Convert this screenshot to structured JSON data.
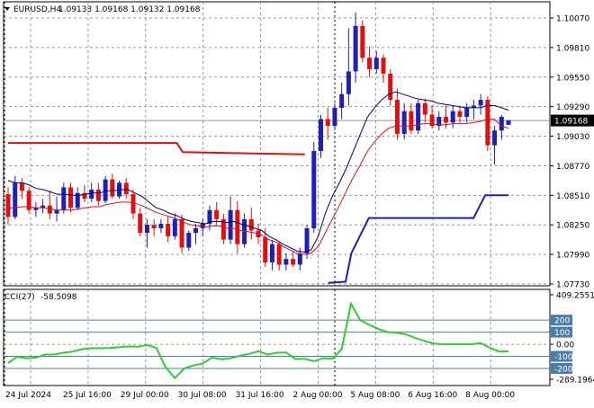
{
  "header": {
    "symbol_text": "EURUSD,H4",
    "ohlc_text": "1.09133 1.09168 1.09132 1.09168"
  },
  "cci_header": {
    "label_text": "CCI(27)",
    "value_text": "-58.5098"
  },
  "colors": {
    "background": "#ffffff",
    "grid": "#9a9a9a",
    "bull_candle": "#1f1fb4",
    "bear_candle": "#e01010",
    "ma_fast": "#000080",
    "ma_slow": "#e01010",
    "upper_line": "#e01010",
    "lower_line": "#1f1fb4",
    "cci_line": "#32cd32",
    "level_badge": "#4a7ea8",
    "price_badge": "#000000"
  },
  "chart_data": [
    {
      "type": "candlestick",
      "title": "EURUSD,H4",
      "y_ticks": [
        "1.10070",
        "1.09810",
        "1.09550",
        "1.09290",
        "1.09030",
        "1.08770",
        "1.08510",
        "1.08250",
        "1.07990",
        "1.07730"
      ],
      "ylim": [
        1.0773,
        1.1007
      ],
      "current_price": "1.09168",
      "x_ticks": [
        "24 Jul 2024",
        "25 Jul 16:00",
        "29 Jul 00:00",
        "30 Jul 08:00",
        "31 Jul 16:00",
        "2 Aug 00:00",
        "5 Aug 08:00",
        "6 Aug 16:00",
        "8 Aug 00:00"
      ],
      "grid": true,
      "candles": [
        [
          1.0852,
          1.0858,
          1.0825,
          1.0832
        ],
        [
          1.0832,
          1.0868,
          1.083,
          1.0862
        ],
        [
          1.0862,
          1.0866,
          1.0848,
          1.0855
        ],
        [
          1.0855,
          1.0858,
          1.0835,
          1.0838
        ],
        [
          1.0838,
          1.0845,
          1.0832,
          1.084
        ],
        [
          1.084,
          1.0848,
          1.0835,
          1.0842
        ],
        [
          1.0842,
          1.0855,
          1.083,
          1.0835
        ],
        [
          1.0835,
          1.085,
          1.0828,
          1.0838
        ],
        [
          1.0838,
          1.0862,
          1.0835,
          1.0858
        ],
        [
          1.0858,
          1.0862,
          1.0836,
          1.084
        ],
        [
          1.084,
          1.0858,
          1.0838,
          1.0853
        ],
        [
          1.0853,
          1.086,
          1.0845,
          1.0848
        ],
        [
          1.0848,
          1.0862,
          1.0845,
          1.0856
        ],
        [
          1.0856,
          1.0862,
          1.0842,
          1.0846
        ],
        [
          1.0846,
          1.0868,
          1.0844,
          1.0865
        ],
        [
          1.0865,
          1.087,
          1.0848,
          1.085
        ],
        [
          1.085,
          1.0864,
          1.0848,
          1.0862
        ],
        [
          1.0862,
          1.0866,
          1.0848,
          1.0852
        ],
        [
          1.0852,
          1.0856,
          1.083,
          1.0835
        ],
        [
          1.0835,
          1.084,
          1.0815,
          1.0818
        ],
        [
          1.0818,
          1.083,
          1.0805,
          1.0825
        ],
        [
          1.0825,
          1.083,
          1.0815,
          1.0822
        ],
        [
          1.0822,
          1.083,
          1.0818,
          1.0826
        ],
        [
          1.0826,
          1.0832,
          1.081,
          1.0815
        ],
        [
          1.0815,
          1.0835,
          1.0812,
          1.083
        ],
        [
          1.083,
          1.0834,
          1.08,
          1.0805
        ],
        [
          1.0805,
          1.082,
          1.0802,
          1.0818
        ],
        [
          1.0818,
          1.0826,
          1.0808,
          1.0822
        ],
        [
          1.0822,
          1.083,
          1.0815,
          1.0826
        ],
        [
          1.0826,
          1.0842,
          1.082,
          1.0838
        ],
        [
          1.0838,
          1.0845,
          1.0825,
          1.083
        ],
        [
          1.083,
          1.0835,
          1.0808,
          1.0812
        ],
        [
          1.0812,
          1.085,
          1.0808,
          1.0838
        ],
        [
          1.0838,
          1.0846,
          1.08,
          1.0808
        ],
        [
          1.0808,
          1.0835,
          1.0805,
          1.083
        ],
        [
          1.083,
          1.084,
          1.0812,
          1.082
        ],
        [
          1.082,
          1.0826,
          1.0808,
          1.0814
        ],
        [
          1.0814,
          1.0822,
          1.0788,
          1.0792
        ],
        [
          1.0792,
          1.0812,
          1.0785,
          1.0808
        ],
        [
          1.0808,
          1.081,
          1.0785,
          1.079
        ],
        [
          1.079,
          1.08,
          1.0785,
          1.0795
        ],
        [
          1.0795,
          1.0802,
          1.0788,
          1.079
        ],
        [
          1.079,
          1.0805,
          1.0785,
          1.08
        ],
        [
          1.08,
          1.0825,
          1.0795,
          1.0822
        ],
        [
          1.0822,
          1.0898,
          1.0818,
          1.089
        ],
        [
          1.089,
          1.0922,
          1.0884,
          1.0918
        ],
        [
          1.0918,
          1.0928,
          1.09,
          1.0912
        ],
        [
          1.0912,
          1.0932,
          1.0908,
          1.0928
        ],
        [
          1.0928,
          1.095,
          1.0918,
          1.094
        ],
        [
          1.094,
          1.0998,
          1.093,
          1.096
        ],
        [
          1.096,
          1.1012,
          1.095,
          1.1
        ],
        [
          1.1,
          1.1005,
          1.0968,
          1.0972
        ],
        [
          1.0972,
          1.0982,
          1.0955,
          1.0962
        ],
        [
          1.0962,
          1.0978,
          1.0958,
          1.0972
        ],
        [
          1.0972,
          1.0975,
          1.095,
          1.0958
        ],
        [
          1.0958,
          1.0962,
          1.093,
          1.0935
        ],
        [
          1.0935,
          1.0945,
          1.09,
          1.0905
        ],
        [
          1.0905,
          1.0932,
          1.09,
          1.0925
        ],
        [
          1.0925,
          1.0932,
          1.0905,
          1.0908
        ],
        [
          1.0908,
          1.0935,
          1.0905,
          1.0932
        ],
        [
          1.0932,
          1.0936,
          1.0915,
          1.0922
        ],
        [
          1.0922,
          1.093,
          1.091,
          1.0912
        ],
        [
          1.0912,
          1.0925,
          1.0908,
          1.092
        ],
        [
          1.092,
          1.093,
          1.091,
          1.0915
        ],
        [
          1.0915,
          1.093,
          1.091,
          1.0925
        ],
        [
          1.0925,
          1.093,
          1.0915,
          1.092
        ],
        [
          1.092,
          1.0932,
          1.0915,
          1.0928
        ],
        [
          1.0928,
          1.0935,
          1.0918,
          1.093
        ],
        [
          1.093,
          1.094,
          1.0922,
          1.0935
        ],
        [
          1.0935,
          1.0938,
          1.089,
          1.0895
        ],
        [
          1.0895,
          1.0912,
          1.0878,
          1.0908
        ],
        [
          1.0908,
          1.0922,
          1.09,
          1.092
        ],
        [
          1.0913,
          1.0917,
          1.0913,
          1.0917
        ]
      ],
      "series": [
        {
          "values": [
            1.0864,
            1.0862,
            1.0862,
            1.086,
            1.0857,
            1.0856,
            1.0854,
            1.0852,
            1.0852,
            1.0851,
            1.0851,
            1.0852,
            1.0853,
            1.0853,
            1.0855,
            1.0855,
            1.0856,
            1.0856,
            1.0853,
            1.085,
            1.0845,
            1.084,
            1.0838,
            1.0835,
            1.0833,
            1.083,
            1.0828,
            1.0827,
            1.0826,
            1.0828,
            1.0828,
            1.0827,
            1.0828,
            1.0826,
            1.0824,
            1.0822,
            1.082,
            1.0815,
            1.0812,
            1.0808,
            1.0805,
            1.0802,
            1.0801,
            1.0803,
            1.0815,
            1.0835,
            1.085,
            1.0862,
            1.0875,
            1.089,
            1.0905,
            1.092,
            1.0928,
            1.0935,
            1.094,
            1.0942,
            1.094,
            1.0938,
            1.0936,
            1.0935,
            1.0934,
            1.0932,
            1.0931,
            1.093,
            1.0929,
            1.0928,
            1.0928,
            1.0928,
            1.093,
            1.093,
            1.0928,
            1.0926
          ]
        },
        {
          "values": [
            1.084,
            1.084,
            1.0841,
            1.0841,
            1.084,
            1.084,
            1.0839,
            1.0838,
            1.0838,
            1.0838,
            1.0839,
            1.084,
            1.0841,
            1.0841,
            1.0843,
            1.0844,
            1.0845,
            1.0845,
            1.0844,
            1.0842,
            1.0839,
            1.0836,
            1.0834,
            1.0832,
            1.083,
            1.0827,
            1.0825,
            1.0824,
            1.0823,
            1.0824,
            1.0824,
            1.0822,
            1.0822,
            1.082,
            1.0819,
            1.0818,
            1.0816,
            1.0812,
            1.081,
            1.0806,
            1.0803,
            1.08,
            1.0799,
            1.08,
            1.0806,
            1.0818,
            1.083,
            1.0842,
            1.0855,
            1.0867,
            1.0878,
            1.089,
            1.0898,
            1.0905,
            1.091,
            1.0912,
            1.0912,
            1.0912,
            1.0913,
            1.0914,
            1.0914,
            1.0913,
            1.0913,
            1.0914,
            1.0914,
            1.0914,
            1.0915,
            1.0916,
            1.0918,
            1.0918,
            1.0912,
            1.091
          ]
        }
      ],
      "upper_line": [
        [
          0,
          1.0897
        ],
        [
          29,
          1.0897
        ],
        [
          30,
          1.0889
        ],
        [
          51,
          1.0887
        ]
      ],
      "lower_line": [
        [
          55,
          1.0774
        ],
        [
          58,
          1.0775
        ],
        [
          59,
          1.08
        ],
        [
          62,
          1.0831
        ],
        [
          80,
          1.0831
        ],
        [
          82,
          1.0851
        ],
        [
          86,
          1.0851
        ]
      ]
    },
    {
      "type": "line",
      "title": "CCI(27)",
      "y_ticks": [
        "409.2551",
        "200",
        "100",
        "0.00",
        "-100",
        "-200",
        "-289.1964"
      ],
      "ylim": [
        -289.1964,
        409.2551
      ],
      "levels": [
        200,
        100,
        -100,
        -200
      ],
      "current_value": "-58.5098",
      "values": [
        -155,
        -103,
        -116,
        -110,
        -85,
        -84,
        -70,
        -60,
        -40,
        -32,
        -33,
        -30,
        -25,
        -18,
        -20,
        -6,
        -30,
        -190,
        -280,
        -200,
        -175,
        -160,
        -110,
        -125,
        -115,
        -95,
        -80,
        -58,
        -85,
        -70,
        -68,
        -123,
        -120,
        -140,
        -115,
        -120,
        -40,
        335,
        200,
        160,
        125,
        100,
        95,
        80,
        50,
        25,
        5,
        0,
        0,
        0,
        0,
        10,
        -30,
        -60,
        -58
      ]
    }
  ]
}
